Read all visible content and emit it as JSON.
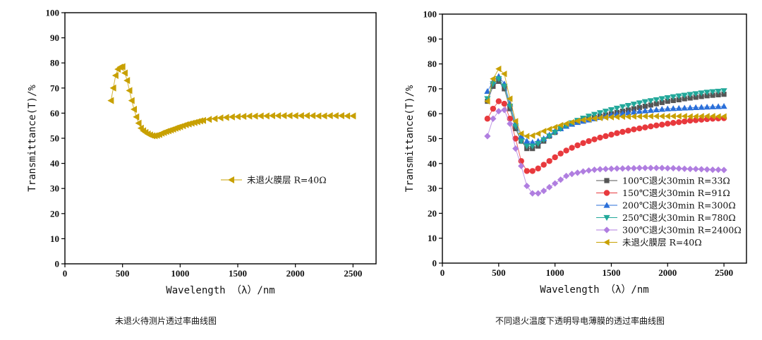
{
  "captions": {
    "left": "未退火待测片透过率曲线图",
    "right": "不同退火温度下透明导电薄膜的透过率曲线图"
  },
  "chart_data": [
    {
      "type": "scatter",
      "xlabel": "Wavelength （λ）/nm",
      "ylabel": "Transmittance(T)/%",
      "xlim": [
        0,
        2700
      ],
      "ylim": [
        0,
        100
      ],
      "xticks": [
        "0",
        "500",
        "1000",
        "1500",
        "2000",
        "2500"
      ],
      "yticks": [
        "0",
        "10",
        "20",
        "30",
        "40",
        "50",
        "60",
        "70",
        "80",
        "90",
        "100"
      ],
      "grid": false,
      "legend_position": "center-right",
      "series": [
        {
          "name": "未退火膜层 R=40Ω",
          "marker": "triangle-left",
          "color": "#c8a000",
          "x": [
            400,
            420,
            440,
            460,
            480,
            500,
            520,
            540,
            560,
            580,
            600,
            620,
            640,
            660,
            680,
            700,
            720,
            740,
            760,
            780,
            800,
            820,
            840,
            860,
            880,
            900,
            920,
            940,
            960,
            980,
            1000,
            1025,
            1050,
            1075,
            1100,
            1125,
            1150,
            1175,
            1200,
            1250,
            1300,
            1350,
            1400,
            1450,
            1500,
            1550,
            1600,
            1650,
            1700,
            1750,
            1800,
            1850,
            1900,
            1950,
            2000,
            2050,
            2100,
            2150,
            2200,
            2250,
            2300,
            2350,
            2400,
            2450,
            2500
          ],
          "y": [
            65,
            70,
            75,
            77.5,
            78.3,
            78.5,
            76,
            73,
            69,
            65,
            61.5,
            58.5,
            56,
            54,
            53,
            52.3,
            51.7,
            51.3,
            51,
            51,
            51.2,
            51.5,
            52,
            52.3,
            52.7,
            53,
            53.3,
            53.6,
            54,
            54.3,
            54.6,
            55,
            55.4,
            55.7,
            56,
            56.3,
            56.6,
            56.9,
            57.1,
            57.5,
            57.8,
            58.1,
            58.3,
            58.5,
            58.6,
            58.7,
            58.8,
            58.8,
            58.9,
            58.9,
            59,
            59,
            59,
            59,
            59,
            59,
            59,
            59,
            58.9,
            58.9,
            59,
            59,
            59,
            58.9,
            58.9
          ]
        }
      ]
    },
    {
      "type": "line",
      "xlabel": "Wavelength （λ）/nm",
      "ylabel": "Transmittance(T)/%",
      "xlim": [
        0,
        2700
      ],
      "ylim": [
        0,
        100
      ],
      "xticks": [
        "0",
        "500",
        "1000",
        "1500",
        "2000",
        "2500"
      ],
      "yticks": [
        "0",
        "10",
        "20",
        "30",
        "40",
        "50",
        "60",
        "70",
        "80",
        "90",
        "100"
      ],
      "grid": false,
      "legend_position": "bottom-right",
      "x": [
        400,
        450,
        500,
        550,
        600,
        650,
        700,
        750,
        800,
        850,
        900,
        950,
        1000,
        1050,
        1100,
        1150,
        1200,
        1250,
        1300,
        1350,
        1400,
        1450,
        1500,
        1550,
        1600,
        1650,
        1700,
        1750,
        1800,
        1850,
        1900,
        1950,
        2000,
        2050,
        2100,
        2150,
        2200,
        2250,
        2300,
        2350,
        2400,
        2450,
        2500
      ],
      "series": [
        {
          "name": "100℃退火30min R=33Ω",
          "marker": "square",
          "color": "#555555",
          "values": [
            65,
            71,
            73,
            70,
            62,
            54,
            49,
            46,
            46,
            47,
            49,
            51,
            52.5,
            54,
            55,
            56,
            57,
            57.5,
            58,
            58.5,
            59,
            59.5,
            60,
            60.5,
            61,
            61.5,
            62,
            62.5,
            63,
            63.5,
            64,
            64.5,
            65,
            65.3,
            65.6,
            66,
            66.3,
            66.6,
            66.9,
            67.2,
            67.4,
            67.6,
            67.8
          ]
        },
        {
          "name": "150℃退火30min R=91Ω",
          "marker": "circle",
          "color": "#e8393d",
          "values": [
            58,
            62,
            65,
            64,
            58,
            50,
            41,
            37,
            37,
            38,
            39.5,
            41,
            42.5,
            44,
            45.2,
            46.3,
            47.3,
            48.2,
            49,
            49.7,
            50.4,
            51,
            51.6,
            52.2,
            52.7,
            53.2,
            53.7,
            54.1,
            54.5,
            54.9,
            55.3,
            55.6,
            56,
            56.3,
            56.6,
            56.9,
            57.2,
            57.4,
            57.6,
            57.8,
            58,
            58.1,
            58.2
          ]
        },
        {
          "name": "200℃退火30min R=300Ω",
          "marker": "triangle-up",
          "color": "#2a6fd9",
          "values": [
            69,
            73,
            75,
            72,
            64,
            56,
            51,
            49,
            48.5,
            49,
            50,
            51.5,
            53,
            54,
            55,
            55.8,
            56.5,
            57,
            57.5,
            58,
            58.5,
            59,
            59.5,
            59.8,
            60.1,
            60.4,
            60.7,
            61,
            61.2,
            61.4,
            61.6,
            61.8,
            62,
            62.1,
            62.2,
            62.3,
            62.4,
            62.5,
            62.6,
            62.7,
            62.8,
            62.9,
            63
          ]
        },
        {
          "name": "250℃退火30min R=780Ω",
          "marker": "triangle-down",
          "color": "#22a89a",
          "values": [
            66,
            72,
            74,
            71,
            63,
            55,
            49,
            47,
            47,
            48,
            49.5,
            51,
            52.5,
            54,
            55.2,
            56.3,
            57.3,
            58.2,
            59,
            59.7,
            60.4,
            61,
            61.6,
            62.2,
            62.8,
            63.3,
            63.8,
            64.3,
            64.8,
            65.2,
            65.6,
            66,
            66.4,
            66.8,
            67.1,
            67.4,
            67.7,
            68,
            68.3,
            68.6,
            68.8,
            69,
            69.2
          ]
        },
        {
          "name": "300℃退火30min R=2400Ω",
          "marker": "diamond",
          "color": "#b07ee0",
          "values": [
            51,
            58,
            61,
            61.5,
            56,
            46,
            39,
            31,
            28,
            28,
            29,
            30.5,
            32,
            33.5,
            35,
            35.8,
            36.3,
            36.8,
            37.2,
            37.5,
            37.7,
            37.8,
            37.9,
            38,
            38,
            38.1,
            38.1,
            38.2,
            38.2,
            38.2,
            38.2,
            38.2,
            38.1,
            38.1,
            38,
            37.9,
            37.8,
            37.8,
            37.7,
            37.6,
            37.5,
            37.5,
            37.4
          ]
        },
        {
          "name": "未退火膜层 R=40Ω",
          "marker": "triangle-left",
          "color": "#c8a000",
          "values": [
            65,
            74,
            78,
            76,
            66,
            57,
            52,
            51,
            51.2,
            52,
            53,
            53.8,
            54.6,
            55.4,
            56,
            56.6,
            57.1,
            57.5,
            57.8,
            58.1,
            58.3,
            58.5,
            58.6,
            58.7,
            58.8,
            58.8,
            58.9,
            58.9,
            59,
            59,
            59,
            59,
            59,
            59,
            59,
            59,
            58.9,
            58.9,
            59,
            59,
            59,
            58.9,
            58.9
          ]
        }
      ]
    }
  ]
}
